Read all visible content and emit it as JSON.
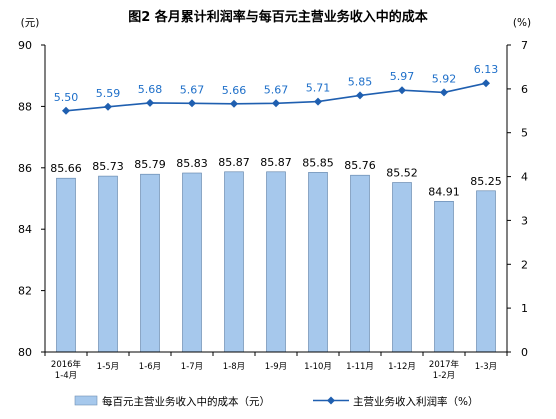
{
  "chart_data": {
    "type": "bar",
    "title": "图2 各月累计利润率与每百元主营业务收入中的成本",
    "categories": [
      [
        "2016年",
        "1-4月"
      ],
      [
        "1-5月"
      ],
      [
        "1-6月"
      ],
      [
        "1-7月"
      ],
      [
        "1-8月"
      ],
      [
        "1-9月"
      ],
      [
        "1-10月"
      ],
      [
        "1-11月"
      ],
      [
        "1-12月"
      ],
      [
        "2017年",
        "1-2月"
      ],
      [
        "1-3月"
      ]
    ],
    "left_axis": {
      "unit": "(元)",
      "ylim": [
        80,
        90
      ],
      "ticks": [
        "80",
        "82",
        "84",
        "86",
        "88",
        "90"
      ]
    },
    "right_axis": {
      "unit": "(%)",
      "ylim": [
        0,
        7
      ],
      "ticks": [
        "0",
        "1",
        "2",
        "3",
        "4",
        "5",
        "6",
        "7"
      ]
    },
    "series": [
      {
        "name": "每百元主营业务收入中的成本（元）",
        "type": "bar",
        "axis": "left",
        "values": [
          85.66,
          85.73,
          85.79,
          85.83,
          85.87,
          85.87,
          85.85,
          85.76,
          85.52,
          84.91,
          85.25
        ],
        "labels": [
          "85.66",
          "85.73",
          "85.79",
          "85.83",
          "85.87",
          "85.87",
          "85.85",
          "85.76",
          "85.52",
          "84.91",
          "85.25"
        ],
        "color": "#a6c8ec"
      },
      {
        "name": "主营业务收入利润率（%）",
        "type": "line",
        "axis": "right",
        "values": [
          5.5,
          5.59,
          5.68,
          5.67,
          5.66,
          5.67,
          5.71,
          5.85,
          5.97,
          5.92,
          6.13
        ],
        "labels": [
          "5.50",
          "5.59",
          "5.68",
          "5.67",
          "5.66",
          "5.67",
          "5.71",
          "5.85",
          "5.97",
          "5.92",
          "6.13"
        ],
        "color": "#1f5fb0",
        "label_color": "#1e6fc9"
      }
    ],
    "grid": false,
    "legend_position": "bottom"
  }
}
